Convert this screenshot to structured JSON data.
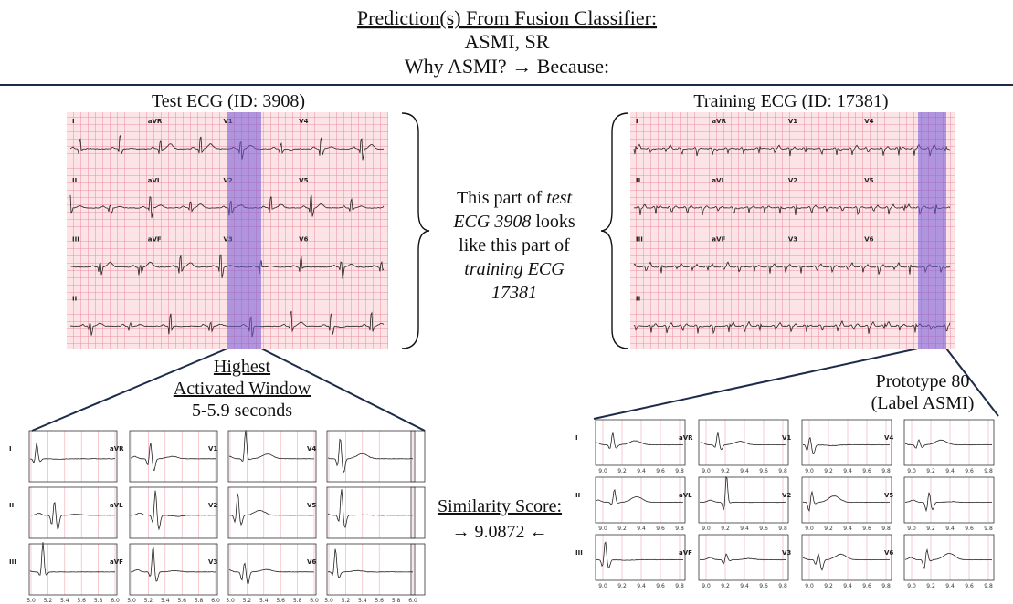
{
  "header": {
    "title": "Prediction(s) From Fusion Classifier:",
    "prediction": "ASMI, SR",
    "question": "Why ASMI? → Because:"
  },
  "test_ecg": {
    "title": "Test ECG (ID: 3908)",
    "leads": [
      "I",
      "aVR",
      "V1",
      "V4",
      "II",
      "aVL",
      "V2",
      "V5",
      "III",
      "aVF",
      "V3",
      "V6",
      "II"
    ]
  },
  "training_ecg": {
    "title": "Training ECG (ID: 17381)",
    "leads": [
      "I",
      "aVR",
      "V1",
      "V4",
      "II",
      "aVL",
      "V2",
      "V5",
      "III",
      "aVF",
      "V3",
      "V6",
      "II"
    ]
  },
  "explanation": {
    "lines": [
      [
        "This part of ",
        "test"
      ],
      [
        "ECG 3908",
        " looks"
      ],
      [
        "like this part of"
      ],
      [
        "training ECG"
      ],
      [
        "17381"
      ]
    ]
  },
  "window": {
    "label_lines": [
      "Highest",
      "Activated Window"
    ],
    "range": "5-5.9 seconds"
  },
  "prototype": {
    "title": "Prototype 80",
    "label": "(Label ASMI)"
  },
  "similarity": {
    "label": "Similarity Score:",
    "value": "→ 9.0872 ←"
  },
  "test_window_panels": {
    "leads": [
      "I",
      "aVR",
      "V1",
      "V4",
      "II",
      "aVL",
      "V2",
      "V5",
      "III",
      "aVF",
      "V3",
      "V6"
    ],
    "xticks": [
      "5.0",
      "5.2",
      "5.4",
      "5.6",
      "5.8",
      "6.0"
    ]
  },
  "prototype_panels": {
    "leads": [
      "I",
      "aVR",
      "V1",
      "V4",
      "II",
      "aVL",
      "V2",
      "V5",
      "III",
      "aVF",
      "V3",
      "V6"
    ],
    "xticks": [
      "9.0",
      "9.2",
      "9.4",
      "9.6",
      "9.8"
    ]
  }
}
